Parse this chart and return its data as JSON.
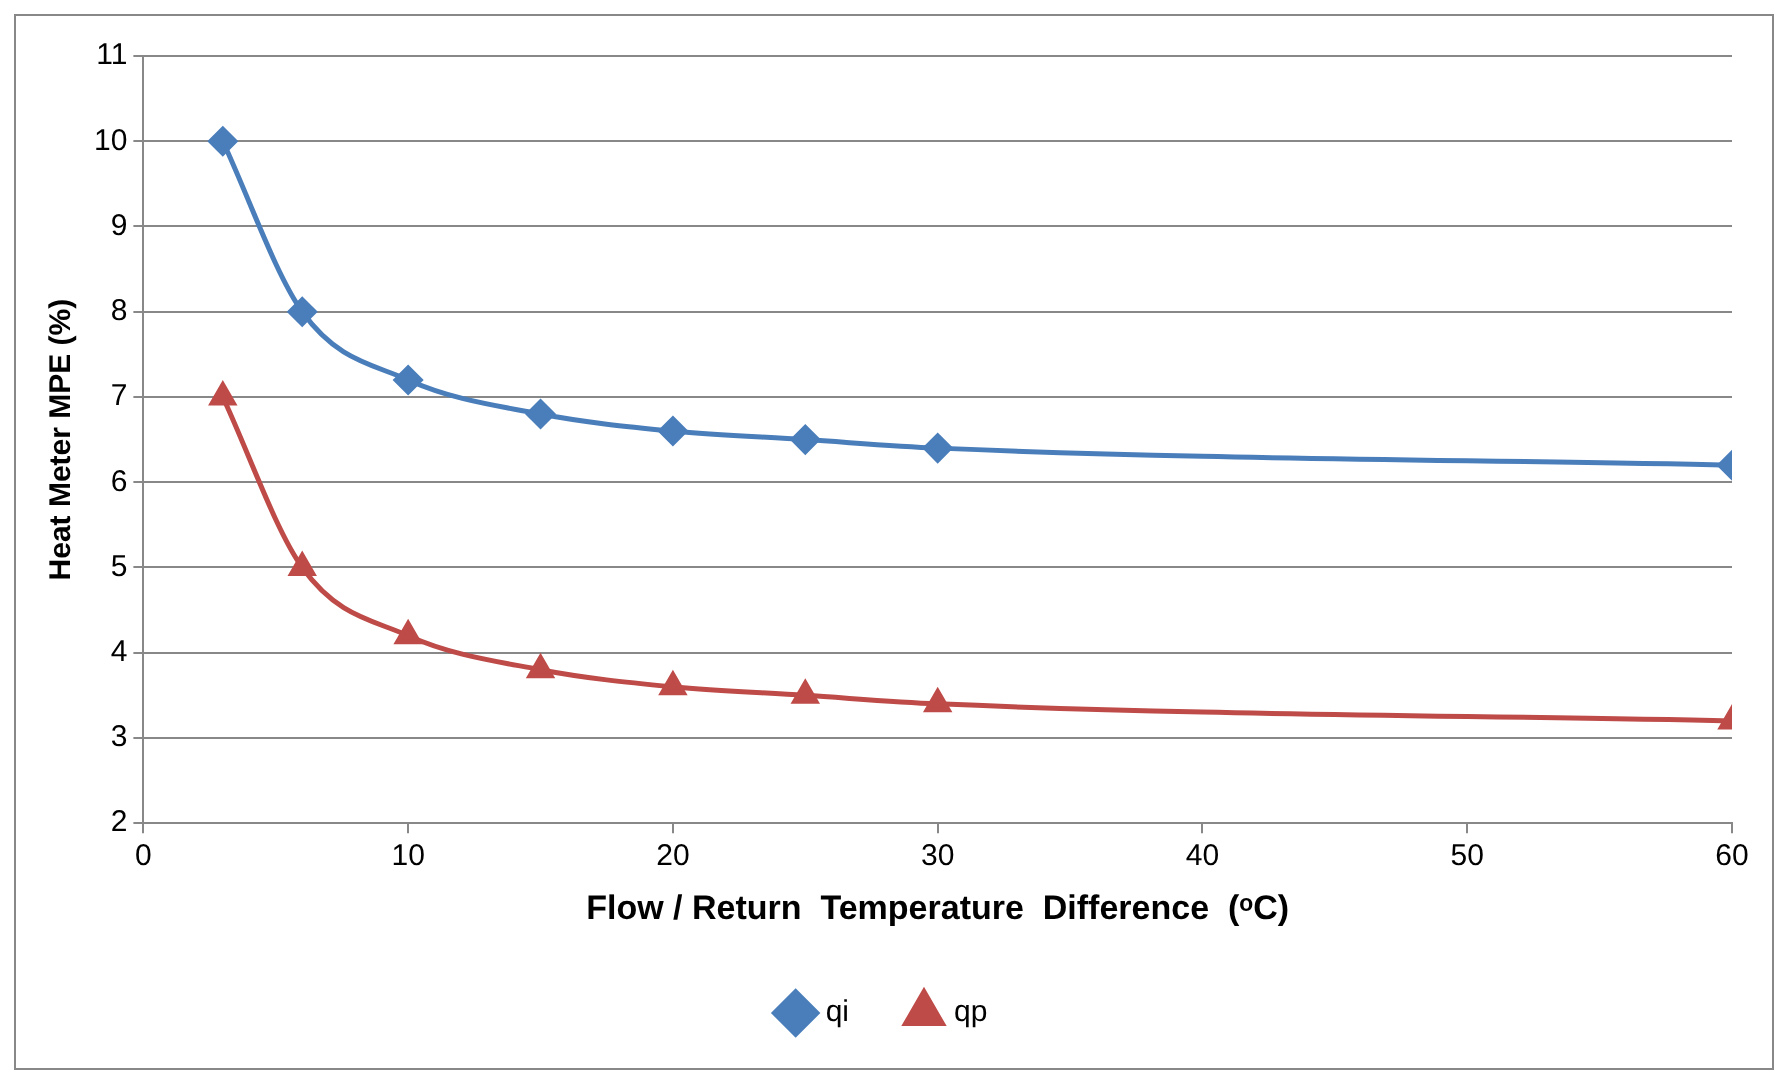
{
  "chart_data": {
    "type": "line",
    "xlabel": "Flow / Return  Temperature  Difference  (ᵒC)",
    "ylabel": "Heat Meter MPE (%)",
    "x": [
      3,
      6,
      10,
      15,
      20,
      25,
      30,
      60
    ],
    "series": [
      {
        "name": "qi",
        "color": "#4a7ebb",
        "marker": "diamond",
        "values": [
          10,
          8,
          7.2,
          6.8,
          6.6,
          6.5,
          6.4,
          6.2
        ]
      },
      {
        "name": "qp",
        "color": "#be4b48",
        "marker": "triangle",
        "values": [
          7,
          5,
          4.2,
          3.8,
          3.6,
          3.5,
          3.4,
          3.2
        ]
      }
    ],
    "xlim": [
      0,
      60
    ],
    "xticks": [
      0,
      10,
      20,
      30,
      40,
      50,
      60
    ],
    "ylim": [
      2,
      11
    ],
    "yticks": [
      2,
      3,
      4,
      5,
      6,
      7,
      8,
      9,
      10,
      11
    ],
    "grid": "y",
    "legend": "bottom",
    "line_style": "solid"
  }
}
